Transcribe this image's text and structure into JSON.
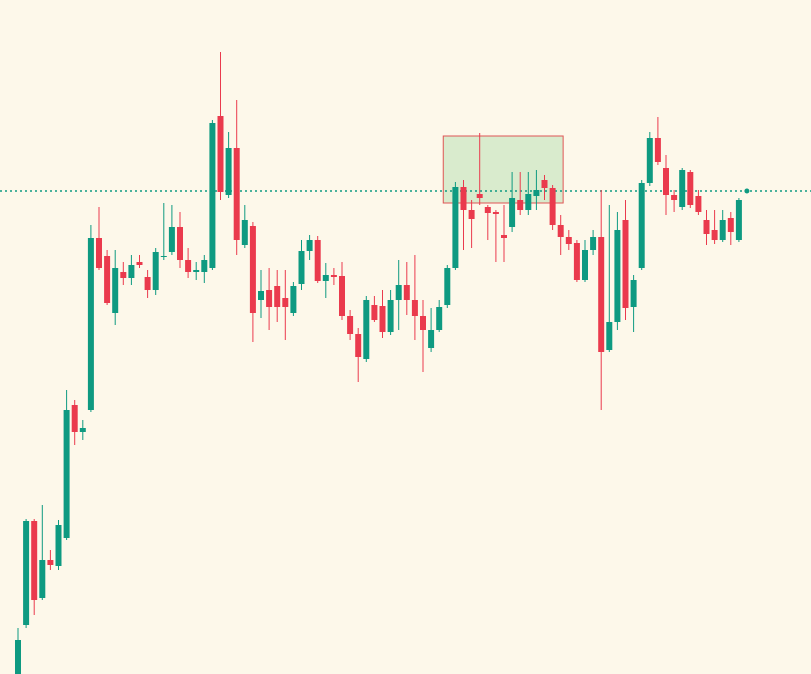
{
  "chart_data": {
    "type": "candlestick",
    "categories": [
      null,
      null,
      null,
      null,
      null,
      null,
      null,
      null,
      null,
      null,
      null,
      null,
      null,
      null,
      null,
      null,
      null,
      null,
      null,
      null,
      null,
      null,
      null,
      null,
      null,
      null,
      null,
      null,
      null,
      null,
      null,
      null,
      null,
      null,
      null,
      null,
      null,
      null,
      null,
      null,
      null,
      null,
      null,
      null,
      null,
      null,
      null,
      null,
      null,
      null,
      null,
      null,
      null,
      null,
      null,
      null,
      null,
      null,
      null,
      null,
      null,
      null,
      null,
      null,
      null,
      null,
      null,
      null,
      null,
      null,
      null,
      null,
      null,
      null,
      null,
      null,
      null,
      null,
      null,
      null,
      null,
      null,
      null,
      null,
      null,
      null,
      null,
      null,
      null,
      null
    ],
    "open": [
      0,
      49,
      153,
      76,
      114,
      108,
      136,
      269,
      242,
      264,
      436,
      418,
      361,
      402,
      396,
      412,
      397,
      384,
      418,
      422,
      447,
      414,
      402,
      402,
      406,
      558,
      479,
      526,
      429,
      448,
      374,
      384,
      388,
      376,
      361,
      390,
      423,
      434,
      393,
      399,
      398,
      358,
      340,
      315,
      369,
      368,
      342,
      374,
      389,
      374,
      358,
      326,
      344,
      369,
      406,
      487,
      464,
      480,
      467,
      462,
      439,
      447,
      474,
      464,
      478,
      494,
      486,
      449,
      437,
      431,
      394,
      424,
      437,
      324,
      352,
      454,
      367,
      406,
      491,
      536,
      506,
      479,
      467,
      502,
      478,
      454,
      444,
      434,
      456,
      434
    ],
    "high": [
      46,
      155,
      155,
      169,
      124,
      154,
      284,
      274,
      254,
      449,
      467,
      424,
      424,
      412,
      419,
      419,
      404,
      426,
      471,
      469,
      462,
      426,
      412,
      419,
      554,
      622,
      542,
      574,
      469,
      452,
      404,
      406,
      404,
      404,
      392,
      434,
      439,
      438,
      411,
      406,
      412,
      364,
      346,
      378,
      378,
      384,
      384,
      414,
      412,
      419,
      374,
      366,
      374,
      409,
      492,
      494,
      474,
      541,
      469,
      464,
      469,
      502,
      502,
      502,
      504,
      499,
      489,
      459,
      444,
      434,
      434,
      444,
      484,
      469,
      462,
      474,
      399,
      494,
      542,
      557,
      519,
      484,
      506,
      504,
      484,
      464,
      464,
      464,
      462,
      476
    ],
    "low": [
      0,
      46,
      59,
      74,
      104,
      104,
      134,
      229,
      234,
      262,
      404,
      369,
      349,
      389,
      389,
      406,
      376,
      379,
      414,
      419,
      406,
      396,
      394,
      391,
      404,
      474,
      476,
      419,
      426,
      332,
      356,
      344,
      352,
      334,
      358,
      384,
      414,
      391,
      376,
      389,
      354,
      334,
      292,
      312,
      352,
      336,
      339,
      344,
      359,
      334,
      302,
      322,
      342,
      366,
      404,
      424,
      426,
      469,
      434,
      412,
      412,
      442,
      459,
      459,
      464,
      474,
      444,
      419,
      424,
      392,
      392,
      419,
      264,
      322,
      344,
      354,
      342,
      404,
      488,
      509,
      459,
      462,
      464,
      466,
      459,
      429,
      430,
      432,
      429,
      432
    ],
    "close": [
      34,
      153,
      74,
      114,
      109,
      149,
      264,
      242,
      246,
      436,
      406,
      371,
      406,
      396,
      409,
      409,
      384,
      422,
      418,
      447,
      414,
      402,
      404,
      414,
      551,
      482,
      526,
      434,
      454,
      361,
      383,
      367,
      367,
      367,
      388,
      423,
      434,
      393,
      399,
      397,
      358,
      340,
      317,
      374,
      354,
      342,
      374,
      389,
      374,
      358,
      344,
      344,
      367,
      406,
      487,
      464,
      455,
      476,
      461,
      460,
      436,
      476,
      464,
      480,
      484,
      486,
      449,
      437,
      430,
      394,
      424,
      437,
      322,
      352,
      444,
      366,
      394,
      491,
      536,
      512,
      479,
      474,
      504,
      469,
      462,
      440,
      434,
      454,
      442,
      474
    ],
    "up_color": "#0e9a81",
    "down_color": "#ea3a4d",
    "ylim": [
      0,
      674
    ],
    "price_line": {
      "value": 483,
      "color": "#0e9a81"
    },
    "zone": {
      "start": 52.5,
      "end": 67.3,
      "top": 538,
      "bottom": 471,
      "fill": "#d9ebcd",
      "stroke": "#e05555"
    }
  }
}
